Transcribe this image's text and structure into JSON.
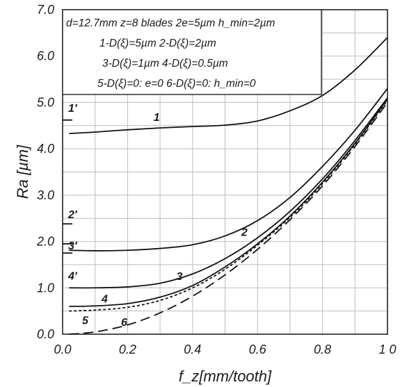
{
  "chart_data": {
    "type": "line",
    "xlabel": "f_z[mm/tooth]",
    "ylabel": "Ra [µm]",
    "xlim": [
      0,
      1.0
    ],
    "ylim": [
      0,
      7.0
    ],
    "x_ticks": [
      "0.0",
      "0.2",
      "0.4",
      "0.6",
      "0.8",
      "1 0"
    ],
    "y_ticks": [
      "0.0",
      "1.0",
      "2.0",
      "3.0",
      "4.0",
      "5.0",
      "6.0",
      "7.0"
    ],
    "grid": true,
    "legend_box": [
      "d=12.7mm  z=8 blades  2e=5µm  h_min=2µm",
      "1-D(ξ)=5µm     2-D(ξ)=2µm",
      "3-D(ξ)=1µm     4-D(ξ)=0.5µm",
      "5-D(ξ)=0: e=0   6-D(ξ)=0: h_min=0"
    ],
    "series": [
      {
        "label": "1",
        "style": "solid",
        "x": [
          0.02,
          0.1,
          0.2,
          0.3,
          0.4,
          0.5,
          0.6,
          0.7,
          0.8,
          0.9,
          1.0
        ],
        "y": [
          4.33,
          4.36,
          4.41,
          4.45,
          4.48,
          4.51,
          4.6,
          4.82,
          5.15,
          5.7,
          6.4
        ]
      },
      {
        "label": "2",
        "style": "solid",
        "x": [
          0.02,
          0.1,
          0.2,
          0.3,
          0.4,
          0.5,
          0.6,
          0.7,
          0.8,
          0.9,
          1.0
        ],
        "y": [
          1.81,
          1.8,
          1.81,
          1.85,
          1.93,
          2.12,
          2.45,
          2.95,
          3.62,
          4.4,
          5.3
        ]
      },
      {
        "label": "3",
        "style": "solid",
        "x": [
          0.02,
          0.1,
          0.2,
          0.3,
          0.4,
          0.5,
          0.6,
          0.7,
          0.8,
          0.9,
          1.0
        ],
        "y": [
          1.0,
          1.0,
          1.02,
          1.1,
          1.3,
          1.63,
          2.08,
          2.65,
          3.35,
          4.18,
          5.1
        ]
      },
      {
        "label": "4",
        "style": "solid",
        "x": [
          0.02,
          0.1,
          0.2,
          0.3,
          0.4,
          0.5,
          0.6,
          0.7,
          0.8,
          0.9,
          1.0
        ],
        "y": [
          0.6,
          0.61,
          0.66,
          0.8,
          1.05,
          1.45,
          1.95,
          2.55,
          3.28,
          4.12,
          5.07
        ]
      },
      {
        "label": "5",
        "style": "dotted",
        "x": [
          0.02,
          0.1,
          0.2,
          0.3,
          0.4,
          0.5,
          0.6,
          0.7,
          0.8,
          0.9,
          1.0
        ],
        "y": [
          0.5,
          0.52,
          0.58,
          0.73,
          1.0,
          1.4,
          1.92,
          2.52,
          3.25,
          4.1,
          5.05
        ]
      },
      {
        "label": "6",
        "style": "dashed",
        "x": [
          0.02,
          0.1,
          0.2,
          0.3,
          0.4,
          0.5,
          0.6,
          0.7,
          0.8,
          0.9,
          1.0
        ],
        "y": [
          0.0,
          0.05,
          0.2,
          0.46,
          0.82,
          1.28,
          1.83,
          2.47,
          3.2,
          4.05,
          5.0
        ]
      }
    ],
    "axis_markers": [
      {
        "label": "1'",
        "y": 4.62
      },
      {
        "label": "2'",
        "y": 2.38
      },
      {
        "label": "3'",
        "y": 1.95
      },
      {
        "label": "4'",
        "y": 1.75
      }
    ]
  }
}
